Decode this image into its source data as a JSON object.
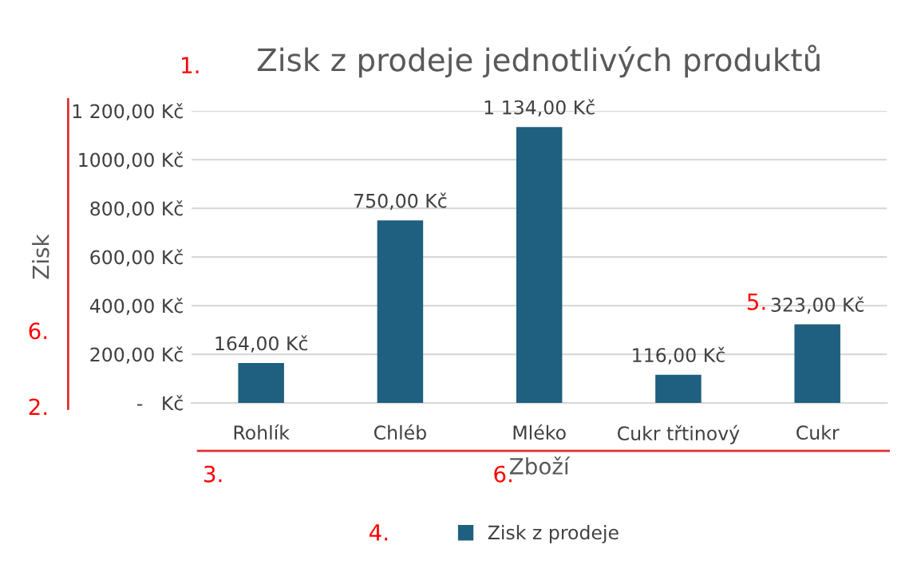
{
  "chart_data": {
    "type": "bar",
    "title": "Zisk z prodeje jednotlivých produktů",
    "xlabel": "Zboží",
    "ylabel": "Zisk",
    "categories": [
      "Rohlík",
      "Chléb",
      "Mléko",
      "Cukr třtinový",
      "Cukr"
    ],
    "series": [
      {
        "name": "Zisk z prodeje",
        "color": "#1f5f7f",
        "values": [
          164,
          750,
          1134,
          116,
          323
        ],
        "value_labels": [
          "164,00 Kč",
          "750,00 Kč",
          "1 134,00 Kč",
          "116,00 Kč",
          "323,00 Kč"
        ]
      }
    ],
    "ylim": [
      0,
      1200
    ],
    "yticks": [
      {
        "value": 0,
        "label": "-   Kč"
      },
      {
        "value": 200,
        "label": "200,00 Kč"
      },
      {
        "value": 400,
        "label": "400,00 Kč"
      },
      {
        "value": 600,
        "label": "600,00 Kč"
      },
      {
        "value": 800,
        "label": "800,00 Kč"
      },
      {
        "value": 1000,
        "label": "1000,00 Kč"
      },
      {
        "value": 1200,
        "label": "1 200,00 Kč"
      }
    ],
    "grid": "y",
    "legend": "bottom",
    "annotations": [
      "1.",
      "2.",
      "3.",
      "4.",
      "5.",
      "6.",
      "6."
    ]
  }
}
